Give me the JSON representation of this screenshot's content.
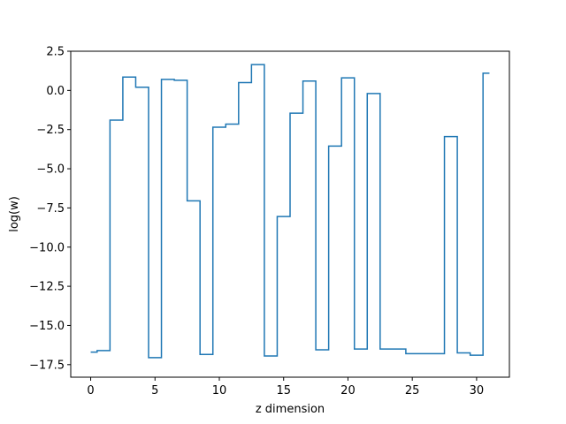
{
  "chart_data": {
    "type": "line",
    "drawstyle": "steps-mid",
    "title": "",
    "xlabel": "z dimension",
    "ylabel": "log(w)",
    "xlim": [
      -1.55,
      32.55
    ],
    "ylim": [
      -18.3,
      2.5
    ],
    "xticks": [
      0,
      5,
      10,
      15,
      20,
      25,
      30
    ],
    "xtick_labels": [
      "0",
      "5",
      "10",
      "15",
      "20",
      "25",
      "30"
    ],
    "yticks": [
      2.5,
      0.0,
      -2.5,
      -5.0,
      -7.5,
      -10.0,
      -12.5,
      -15.0,
      -17.5
    ],
    "ytick_labels": [
      "2.5",
      "0.0",
      "−2.5",
      "−5.0",
      "−7.5",
      "−10.0",
      "−12.5",
      "−15.0",
      "−17.5"
    ],
    "grid": false,
    "legend": "none",
    "series_color": "#1f77b4",
    "x": [
      0,
      1,
      2,
      3,
      4,
      5,
      6,
      7,
      8,
      9,
      10,
      11,
      12,
      13,
      14,
      15,
      16,
      17,
      18,
      19,
      20,
      21,
      22,
      23,
      24,
      25,
      26,
      27,
      28,
      29,
      30,
      31
    ],
    "values": [
      -16.7,
      -16.6,
      -1.9,
      0.85,
      0.2,
      -17.05,
      0.7,
      0.65,
      -7.05,
      -16.85,
      -2.35,
      -2.15,
      0.5,
      1.65,
      -16.95,
      -8.05,
      -1.45,
      0.6,
      -16.55,
      -3.55,
      0.8,
      -16.5,
      -0.2,
      -16.5,
      -16.5,
      -16.8,
      -16.8,
      -16.8,
      -2.95,
      -16.75,
      -16.9,
      1.1
    ]
  }
}
